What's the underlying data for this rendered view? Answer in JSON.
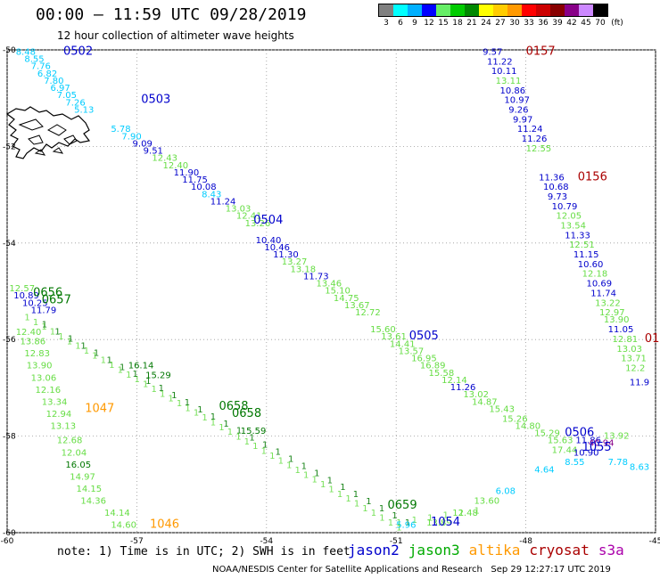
{
  "header": {
    "title": "00:00 – 11:59 UTC 09/28/2019",
    "subtitle": "12 hour collection of altimeter wave heights"
  },
  "legend": {
    "unit": "(ft)",
    "bins": [
      {
        "label": "3",
        "color": "#808080"
      },
      {
        "label": "6",
        "color": "#00ffff"
      },
      {
        "label": "9",
        "color": "#00b0ff"
      },
      {
        "label": "12",
        "color": "#0000ff"
      },
      {
        "label": "15",
        "color": "#66ee66"
      },
      {
        "label": "18",
        "color": "#00cc00"
      },
      {
        "label": "21",
        "color": "#008800"
      },
      {
        "label": "24",
        "color": "#ffff00"
      },
      {
        "label": "27",
        "color": "#ffcc00"
      },
      {
        "label": "30",
        "color": "#ff9900"
      },
      {
        "label": "33",
        "color": "#ff0000"
      },
      {
        "label": "36",
        "color": "#cc0000"
      },
      {
        "label": "39",
        "color": "#880000"
      },
      {
        "label": "42",
        "color": "#880088"
      },
      {
        "label": "45",
        "color": "#cc88ff"
      },
      {
        "label": "70",
        "color": "#000000"
      }
    ]
  },
  "colors": {
    "jason2": "#0000cc",
    "jason3": "#00aa00",
    "altika": "#ff9900",
    "cryosat": "#aa0000",
    "s3a": "#aa00aa",
    "cyan": "#00ccff",
    "lightgreen": "#66dd44",
    "darkgreen": "#007700",
    "purple": "#880088"
  },
  "map": {
    "lon_ticks": [
      "-60",
      "-57",
      "-54",
      "-51",
      "-48",
      "-45"
    ],
    "lat_ticks": [
      "-50",
      "-52",
      "-54",
      "-56",
      "-58",
      "-60"
    ],
    "lon_range": [
      -60,
      -45
    ],
    "lat_range": [
      -60,
      -50
    ]
  },
  "track_labels": [
    {
      "text": "0502",
      "lon": -58.7,
      "lat": -50.1,
      "color": "jason2",
      "size": 13
    },
    {
      "text": "0503",
      "lon": -56.9,
      "lat": -51.1,
      "color": "jason2",
      "size": 13
    },
    {
      "text": "0504",
      "lon": -54.3,
      "lat": -53.6,
      "color": "jason2",
      "size": 13
    },
    {
      "text": "0505",
      "lon": -50.7,
      "lat": -56.0,
      "color": "jason2",
      "size": 13
    },
    {
      "text": "0506",
      "lon": -47.1,
      "lat": -58.0,
      "color": "jason2",
      "size": 13
    },
    {
      "text": "1054",
      "lon": -50.2,
      "lat": -59.85,
      "color": "jason2",
      "size": 13
    },
    {
      "text": "1055",
      "lon": -46.7,
      "lat": -58.3,
      "color": "jason2",
      "size": 13
    },
    {
      "text": "0157",
      "lon": -48.0,
      "lat": -50.1,
      "color": "cryosat",
      "size": 13
    },
    {
      "text": "0156",
      "lon": -46.8,
      "lat": -52.7,
      "color": "cryosat",
      "size": 13
    },
    {
      "text": "01",
      "lon": -45.25,
      "lat": -56.05,
      "color": "cryosat",
      "size": 13
    },
    {
      "text": "1047",
      "lon": -58.2,
      "lat": -57.5,
      "color": "altika",
      "size": 13
    },
    {
      "text": "1046",
      "lon": -56.7,
      "lat": -59.9,
      "color": "altika",
      "size": 13
    },
    {
      "text": "0656",
      "lon": -59.4,
      "lat": -55.1,
      "color": "darkgreen",
      "size": 13
    },
    {
      "text": "0657",
      "lon": -59.2,
      "lat": -55.25,
      "color": "darkgreen",
      "size": 13
    },
    {
      "text": "0658",
      "lon": -55.1,
      "lat": -57.45,
      "color": "darkgreen",
      "size": 13
    },
    {
      "text": "0658",
      "lon": -54.8,
      "lat": -57.6,
      "color": "darkgreen",
      "size": 13
    },
    {
      "text": "0659",
      "lon": -51.2,
      "lat": -59.5,
      "color": "darkgreen",
      "size": 13
    }
  ],
  "wave_values": [
    {
      "t": "8.48",
      "lon": -59.8,
      "lat": -50.1,
      "c": "cyan"
    },
    {
      "t": "8.55",
      "lon": -59.6,
      "lat": -50.25,
      "c": "cyan"
    },
    {
      "t": "7.76",
      "lon": -59.45,
      "lat": -50.4,
      "c": "cyan"
    },
    {
      "t": "6.82",
      "lon": -59.3,
      "lat": -50.55,
      "c": "cyan"
    },
    {
      "t": "7.80",
      "lon": -59.15,
      "lat": -50.7,
      "c": "cyan"
    },
    {
      "t": "6.97",
      "lon": -59.0,
      "lat": -50.85,
      "c": "cyan"
    },
    {
      "t": "7.05",
      "lon": -58.85,
      "lat": -51.0,
      "c": "cyan"
    },
    {
      "t": "7.26",
      "lon": -58.65,
      "lat": -51.15,
      "c": "cyan"
    },
    {
      "t": "5.13",
      "lon": -58.45,
      "lat": -51.3,
      "c": "cyan"
    },
    {
      "t": "5.78",
      "lon": -57.6,
      "lat": -51.7,
      "c": "cyan"
    },
    {
      "t": "7.90",
      "lon": -57.35,
      "lat": -51.85,
      "c": "cyan"
    },
    {
      "t": "9.09",
      "lon": -57.1,
      "lat": -52.0,
      "c": "jason2"
    },
    {
      "t": "9.51",
      "lon": -56.85,
      "lat": -52.15,
      "c": "jason2"
    },
    {
      "t": "12.43",
      "lon": -56.65,
      "lat": -52.3,
      "c": "lightgreen"
    },
    {
      "t": "12.40",
      "lon": -56.4,
      "lat": -52.45,
      "c": "lightgreen"
    },
    {
      "t": "11.90",
      "lon": -56.15,
      "lat": -52.6,
      "c": "jason2"
    },
    {
      "t": "11.75",
      "lon": -55.95,
      "lat": -52.75,
      "c": "jason2"
    },
    {
      "t": "10.08",
      "lon": -55.75,
      "lat": -52.9,
      "c": "jason2"
    },
    {
      "t": "8.43",
      "lon": -55.5,
      "lat": -53.05,
      "c": "cyan"
    },
    {
      "t": "11.24",
      "lon": -55.3,
      "lat": -53.2,
      "c": "jason2"
    },
    {
      "t": "13.03",
      "lon": -54.95,
      "lat": -53.35,
      "c": "lightgreen"
    },
    {
      "t": "12.41",
      "lon": -54.7,
      "lat": -53.5,
      "c": "lightgreen"
    },
    {
      "t": "13.26",
      "lon": -54.5,
      "lat": -53.65,
      "c": "lightgreen"
    },
    {
      "t": "10.40",
      "lon": -54.25,
      "lat": -54.0,
      "c": "jason2"
    },
    {
      "t": "10.46",
      "lon": -54.05,
      "lat": -54.15,
      "c": "jason2"
    },
    {
      "t": "11.30",
      "lon": -53.85,
      "lat": -54.3,
      "c": "jason2"
    },
    {
      "t": "13.27",
      "lon": -53.65,
      "lat": -54.45,
      "c": "lightgreen"
    },
    {
      "t": "13.18",
      "lon": -53.45,
      "lat": -54.6,
      "c": "lightgreen"
    },
    {
      "t": "11.73",
      "lon": -53.15,
      "lat": -54.75,
      "c": "jason2"
    },
    {
      "t": "13.46",
      "lon": -52.85,
      "lat": -54.9,
      "c": "lightgreen"
    },
    {
      "t": "15.10",
      "lon": -52.65,
      "lat": -55.05,
      "c": "lightgreen"
    },
    {
      "t": "14.75",
      "lon": -52.45,
      "lat": -55.2,
      "c": "lightgreen"
    },
    {
      "t": "13.67",
      "lon": -52.2,
      "lat": -55.35,
      "c": "lightgreen"
    },
    {
      "t": "12.72",
      "lon": -51.95,
      "lat": -55.5,
      "c": "lightgreen"
    },
    {
      "t": "15.60",
      "lon": -51.6,
      "lat": -55.85,
      "c": "lightgreen"
    },
    {
      "t": "13.61",
      "lon": -51.35,
      "lat": -56.0,
      "c": "lightgreen"
    },
    {
      "t": "14.41",
      "lon": -51.15,
      "lat": -56.15,
      "c": "lightgreen"
    },
    {
      "t": "13.57",
      "lon": -50.95,
      "lat": -56.3,
      "c": "lightgreen"
    },
    {
      "t": "16.95",
      "lon": -50.65,
      "lat": -56.45,
      "c": "lightgreen"
    },
    {
      "t": "16.89",
      "lon": -50.45,
      "lat": -56.6,
      "c": "lightgreen"
    },
    {
      "t": "15.58",
      "lon": -50.25,
      "lat": -56.75,
      "c": "lightgreen"
    },
    {
      "t": "12.14",
      "lon": -49.95,
      "lat": -56.9,
      "c": "lightgreen"
    },
    {
      "t": "11.26",
      "lon": -49.75,
      "lat": -57.05,
      "c": "jason2"
    },
    {
      "t": "13.02",
      "lon": -49.45,
      "lat": -57.2,
      "c": "lightgreen"
    },
    {
      "t": "14.87",
      "lon": -49.25,
      "lat": -57.35,
      "c": "lightgreen"
    },
    {
      "t": "15.43",
      "lon": -48.85,
      "lat": -57.5,
      "c": "lightgreen"
    },
    {
      "t": "15.26",
      "lon": -48.55,
      "lat": -57.7,
      "c": "lightgreen"
    },
    {
      "t": "14.80",
      "lon": -48.25,
      "lat": -57.85,
      "c": "lightgreen"
    },
    {
      "t": "15.29",
      "lon": -47.8,
      "lat": -58.0,
      "c": "lightgreen"
    },
    {
      "t": "15.63",
      "lon": -47.5,
      "lat": -58.15,
      "c": "lightgreen"
    },
    {
      "t": "17.44",
      "lon": -47.4,
      "lat": -58.35,
      "c": "lightgreen"
    },
    {
      "t": "10.90",
      "lon": -46.9,
      "lat": -58.4,
      "c": "jason2"
    },
    {
      "t": "11.86",
      "lon": -46.85,
      "lat": -58.15,
      "c": "jason2"
    },
    {
      "t": "40.94",
      "lon": -46.55,
      "lat": -58.2,
      "c": "purple"
    },
    {
      "t": "13.92",
      "lon": -46.2,
      "lat": -58.05,
      "c": "lightgreen"
    },
    {
      "t": "8.55",
      "lon": -47.1,
      "lat": -58.6,
      "c": "cyan"
    },
    {
      "t": "4.64",
      "lon": -47.8,
      "lat": -58.75,
      "c": "cyan"
    },
    {
      "t": "7.78",
      "lon": -46.1,
      "lat": -58.6,
      "c": "cyan"
    },
    {
      "t": "8.63",
      "lon": -45.6,
      "lat": -58.7,
      "c": "cyan"
    },
    {
      "t": "9.57",
      "lon": -49.0,
      "lat": -50.1,
      "c": "jason2"
    },
    {
      "t": "11.22",
      "lon": -48.9,
      "lat": -50.3,
      "c": "jason2"
    },
    {
      "t": "10.11",
      "lon": -48.8,
      "lat": -50.5,
      "c": "jason2"
    },
    {
      "t": "13.11",
      "lon": -48.7,
      "lat": -50.7,
      "c": "lightgreen"
    },
    {
      "t": "10.86",
      "lon": -48.6,
      "lat": -50.9,
      "c": "jason2"
    },
    {
      "t": "10.97",
      "lon": -48.5,
      "lat": -51.1,
      "c": "jason2"
    },
    {
      "t": "9.26",
      "lon": -48.4,
      "lat": -51.3,
      "c": "jason2"
    },
    {
      "t": "9.97",
      "lon": -48.3,
      "lat": -51.5,
      "c": "jason2"
    },
    {
      "t": "11.24",
      "lon": -48.2,
      "lat": -51.7,
      "c": "jason2"
    },
    {
      "t": "11.26",
      "lon": -48.1,
      "lat": -51.9,
      "c": "jason2"
    },
    {
      "t": "12.55",
      "lon": -48.0,
      "lat": -52.1,
      "c": "lightgreen"
    },
    {
      "t": "11.36",
      "lon": -47.7,
      "lat": -52.7,
      "c": "jason2"
    },
    {
      "t": "10.68",
      "lon": -47.6,
      "lat": -52.9,
      "c": "jason2"
    },
    {
      "t": "9.73",
      "lon": -47.5,
      "lat": -53.1,
      "c": "jason2"
    },
    {
      "t": "10.79",
      "lon": -47.4,
      "lat": -53.3,
      "c": "jason2"
    },
    {
      "t": "12.05",
      "lon": -47.3,
      "lat": -53.5,
      "c": "lightgreen"
    },
    {
      "t": "13.54",
      "lon": -47.2,
      "lat": -53.7,
      "c": "lightgreen"
    },
    {
      "t": "11.33",
      "lon": -47.1,
      "lat": -53.9,
      "c": "jason2"
    },
    {
      "t": "12.51",
      "lon": -47.0,
      "lat": -54.1,
      "c": "lightgreen"
    },
    {
      "t": "11.15",
      "lon": -46.9,
      "lat": -54.3,
      "c": "jason2"
    },
    {
      "t": "10.60",
      "lon": -46.8,
      "lat": -54.5,
      "c": "jason2"
    },
    {
      "t": "12.18",
      "lon": -46.7,
      "lat": -54.7,
      "c": "lightgreen"
    },
    {
      "t": "10.69",
      "lon": -46.6,
      "lat": -54.9,
      "c": "jason2"
    },
    {
      "t": "11.74",
      "lon": -46.5,
      "lat": -55.1,
      "c": "jason2"
    },
    {
      "t": "13.22",
      "lon": -46.4,
      "lat": -55.3,
      "c": "lightgreen"
    },
    {
      "t": "12.97",
      "lon": -46.3,
      "lat": -55.5,
      "c": "lightgreen"
    },
    {
      "t": "13.90",
      "lon": -46.2,
      "lat": -55.65,
      "c": "lightgreen"
    },
    {
      "t": "11.05",
      "lon": -46.1,
      "lat": -55.85,
      "c": "jason2"
    },
    {
      "t": "12.81",
      "lon": -46.0,
      "lat": -56.05,
      "c": "lightgreen"
    },
    {
      "t": "13.03",
      "lon": -45.9,
      "lat": -56.25,
      "c": "lightgreen"
    },
    {
      "t": "13.71",
      "lon": -45.8,
      "lat": -56.45,
      "c": "lightgreen"
    },
    {
      "t": "12.2",
      "lon": -45.7,
      "lat": -56.65,
      "c": "lightgreen"
    },
    {
      "t": "11.9",
      "lon": -45.6,
      "lat": -56.95,
      "c": "jason2"
    },
    {
      "t": "12.57",
      "lon": -59.95,
      "lat": -55.0,
      "c": "lightgreen"
    },
    {
      "t": "10.89",
      "lon": -59.85,
      "lat": -55.15,
      "c": "jason2"
    },
    {
      "t": "10.25",
      "lon": -59.65,
      "lat": -55.3,
      "c": "jason2"
    },
    {
      "t": "11.79",
      "lon": -59.45,
      "lat": -55.45,
      "c": "jason2"
    },
    {
      "t": "12.40",
      "lon": -59.8,
      "lat": -55.9,
      "c": "lightgreen"
    },
    {
      "t": "13.86",
      "lon": -59.7,
      "lat": -56.1,
      "c": "lightgreen"
    },
    {
      "t": "12.83",
      "lon": -59.6,
      "lat": -56.35,
      "c": "lightgreen"
    },
    {
      "t": "13.90",
      "lon": -59.55,
      "lat": -56.6,
      "c": "lightgreen"
    },
    {
      "t": "13.06",
      "lon": -59.45,
      "lat": -56.85,
      "c": "lightgreen"
    },
    {
      "t": "12.16",
      "lon": -59.35,
      "lat": -57.1,
      "c": "lightgreen"
    },
    {
      "t": "13.34",
      "lon": -59.2,
      "lat": -57.35,
      "c": "lightgreen"
    },
    {
      "t": "12.94",
      "lon": -59.1,
      "lat": -57.6,
      "c": "lightgreen"
    },
    {
      "t": "13.13",
      "lon": -59.0,
      "lat": -57.85,
      "c": "lightgreen"
    },
    {
      "t": "12.68",
      "lon": -58.85,
      "lat": -58.15,
      "c": "lightgreen"
    },
    {
      "t": "12.04",
      "lon": -58.75,
      "lat": -58.4,
      "c": "lightgreen"
    },
    {
      "t": "16.05",
      "lon": -58.65,
      "lat": -58.65,
      "c": "darkgreen"
    },
    {
      "t": "14.97",
      "lon": -58.55,
      "lat": -58.9,
      "c": "lightgreen"
    },
    {
      "t": "14.15",
      "lon": -58.4,
      "lat": -59.15,
      "c": "lightgreen"
    },
    {
      "t": "14.36",
      "lon": -58.3,
      "lat": -59.4,
      "c": "lightgreen"
    },
    {
      "t": "14.14",
      "lon": -57.75,
      "lat": -59.65,
      "c": "lightgreen"
    },
    {
      "t": "14.60",
      "lon": -57.6,
      "lat": -59.9,
      "c": "lightgreen"
    },
    {
      "t": "16.14",
      "lon": -57.2,
      "lat": -56.6,
      "c": "darkgreen"
    },
    {
      "t": "15.29",
      "lon": -56.8,
      "lat": -56.8,
      "c": "darkgreen"
    },
    {
      "t": "15.59",
      "lon": -54.6,
      "lat": -57.95,
      "c": "darkgreen"
    },
    {
      "t": "6.08",
      "lon": -48.7,
      "lat": -59.2,
      "c": "cyan"
    },
    {
      "t": "13.60",
      "lon": -49.2,
      "lat": -59.4,
      "c": "lightgreen"
    },
    {
      "t": "12.48",
      "lon": -49.7,
      "lat": -59.65,
      "c": "lightgreen"
    },
    {
      "t": "13.89",
      "lon": -50.3,
      "lat": -59.85,
      "c": "lightgreen"
    },
    {
      "t": "5.96",
      "lon": -51.0,
      "lat": -59.9,
      "c": "cyan"
    }
  ],
  "green_tracks": [
    {
      "from": [
        -59.6,
        -55.6
      ],
      "to": [
        -51.0,
        -59.95
      ],
      "step": 0.22,
      "color": "lightgreen"
    },
    {
      "from": [
        -59.2,
        -55.75
      ],
      "to": [
        -50.8,
        -59.85
      ],
      "step": 0.33,
      "color": "darkgreen"
    },
    {
      "from": [
        -51.0,
        -59.85
      ],
      "to": [
        -49.2,
        -59.6
      ],
      "step": 0.4,
      "color": "lightgreen"
    }
  ],
  "note": "note: 1) Time is in UTC; 2) SWH is in feet",
  "satellites": [
    {
      "name": "jason2",
      "color": "jason2"
    },
    {
      "name": "jason3",
      "color": "jason3"
    },
    {
      "name": "altika",
      "color": "altika"
    },
    {
      "name": "cryosat",
      "color": "cryosat"
    },
    {
      "name": "s3a",
      "color": "s3a"
    }
  ],
  "credit": "NOAA/NESDIS Center for Satellite Applications and Research   Sep 29 12:27:17 UTC 2019"
}
